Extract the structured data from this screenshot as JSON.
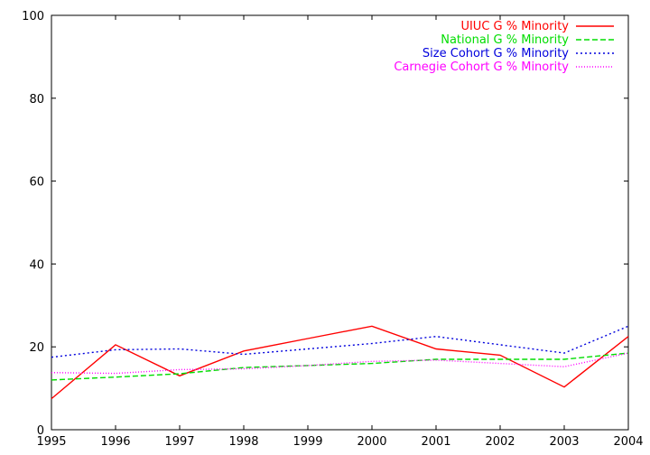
{
  "chart_data": {
    "type": "line",
    "title": "",
    "xlabel": "",
    "ylabel": "",
    "x": [
      1995,
      1996,
      1997,
      1998,
      1999,
      2000,
      2001,
      2002,
      2003,
      2004
    ],
    "xlim": [
      1995,
      2004
    ],
    "ylim": [
      0,
      100
    ],
    "xticks": [
      "1995",
      "1996",
      "1997",
      "1998",
      "1999",
      "2000",
      "2001",
      "2002",
      "2003",
      "2004"
    ],
    "yticks": [
      "0",
      "20",
      "40",
      "60",
      "80",
      "100"
    ],
    "grid": false,
    "legend_position": "top-right",
    "series": [
      {
        "name": "UIUC G % Minority",
        "color": "#ff0000",
        "dash": "solid",
        "values": [
          7.5,
          20.5,
          13.0,
          19.0,
          22.0,
          25.0,
          19.5,
          18.0,
          10.3,
          22.5
        ]
      },
      {
        "name": "National G % Minority",
        "color": "#00dd00",
        "dash": "dashed",
        "values": [
          12.0,
          12.7,
          13.5,
          15.0,
          15.5,
          16.0,
          17.0,
          17.0,
          17.0,
          18.5
        ]
      },
      {
        "name": "Size Cohort G % Minority",
        "color": "#0000dd",
        "dash": "dotted",
        "values": [
          17.5,
          19.3,
          19.5,
          18.2,
          19.5,
          20.8,
          22.5,
          20.5,
          18.5,
          25.0
        ]
      },
      {
        "name": "Carnegie Cohort G % Minority",
        "color": "#ff00ff",
        "dash": "fine-dotted",
        "values": [
          13.8,
          13.6,
          14.5,
          14.7,
          15.5,
          16.5,
          16.8,
          16.0,
          15.2,
          18.5
        ]
      }
    ]
  }
}
